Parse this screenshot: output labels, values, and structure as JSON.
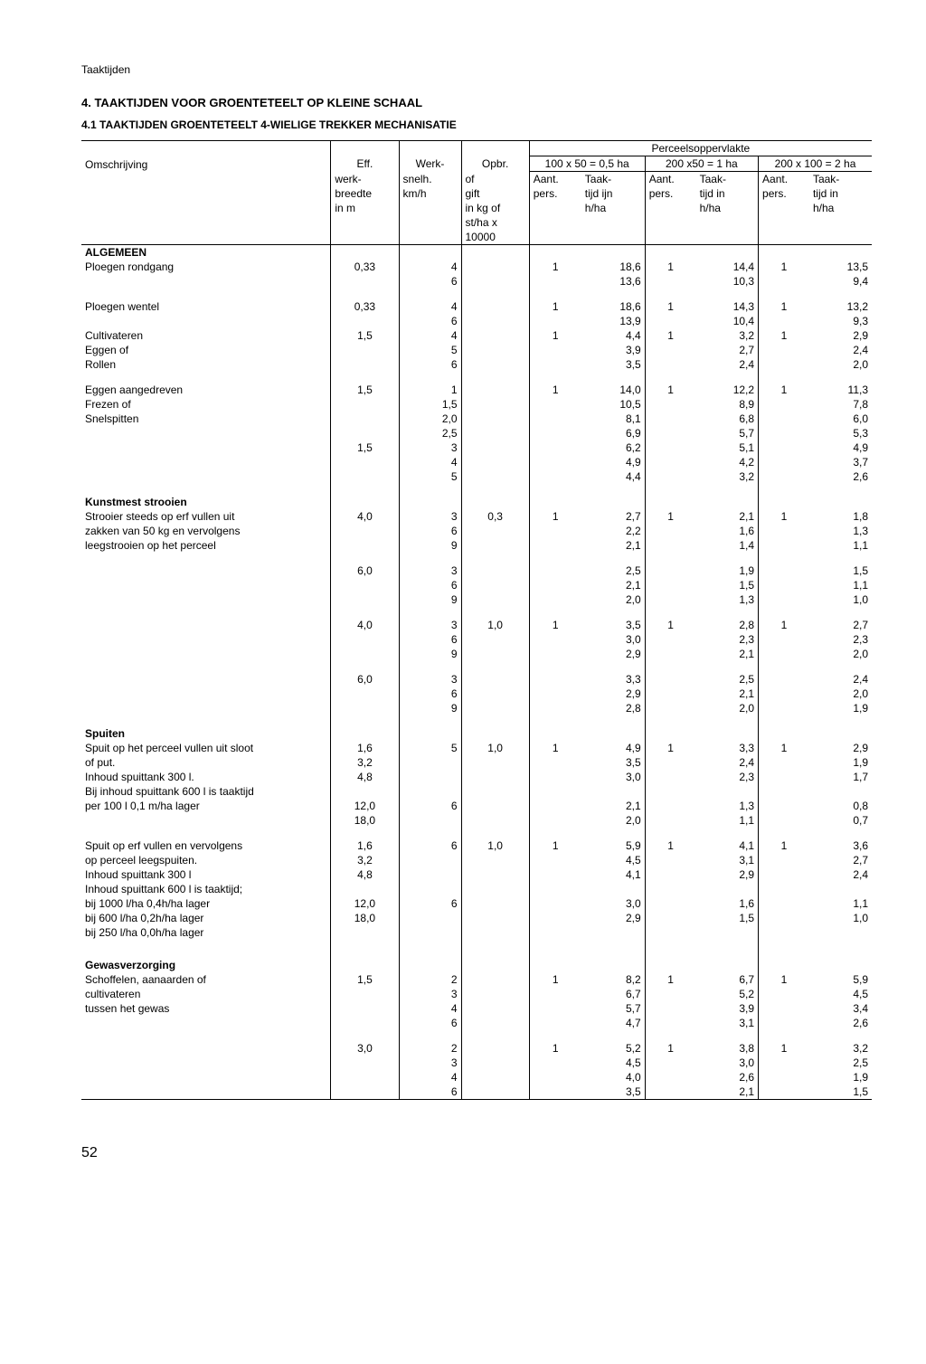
{
  "header": "Taaktijden",
  "section_title": "4. TAAKTIJDEN VOOR GROENTETEELT OP KLEINE SCHAAL",
  "subsection_title": "4.1 TAAKTIJDEN GROENTETEELT 4-WIELIGE TREKKER MECHANISATIE",
  "page_number": "52",
  "th": {
    "omschrijving": "Omschrijving",
    "eff1": "Eff.",
    "eff2": "werk-",
    "eff3": "breedte",
    "eff4": "in m",
    "werk1": "Werk-",
    "werk2": "snelh.",
    "werk3": "km/h",
    "opbr1": "Opbr.",
    "opbr2": "of",
    "opbr3": "gift",
    "opbr4": "in kg of",
    "opbr5": "st/ha x",
    "opbr6": "10000",
    "perceel": "Perceelsoppervlakte",
    "p1": "100 x 50 = 0,5 ha",
    "p2": "200 x50 = 1 ha",
    "p3": "200 x 100 = 2 ha",
    "aant1": "Aant.",
    "aant2": "pers.",
    "taak1": "Taak-",
    "taak2a": "tijd ijn",
    "taak2b": "tijd in",
    "taak3": "h/ha"
  },
  "sections": {
    "algemeen": "ALGEMEEN",
    "kunstmest": "Kunstmest strooien",
    "spuiten": "Spuiten",
    "gewas": "Gewasverzorging"
  },
  "desc": {
    "ploegen_rondgang": "Ploegen rondgang",
    "ploegen_wentel": "Ploegen wentel",
    "cultivateren": "Cultivateren",
    "eggen_of": "Eggen of",
    "rollen": "Rollen",
    "eggen_aangedreven": "Eggen aangedreven",
    "frezen_of": "Frezen of",
    "snelspitten": "Snelspitten",
    "strooier1": "Strooier steeds op erf vullen uit",
    "strooier2": "zakken van 50 kg en vervolgens",
    "strooier3": "leegstrooien op het perceel",
    "spuit1a": "Spuit op het perceel vullen uit sloot",
    "spuit1b": "of put.",
    "spuit1c": "Inhoud spuittank 300 l.",
    "spuit1d": "Bij inhoud spuittank 600 l is taaktijd",
    "spuit1e": "per 100 l 0,1 m/ha lager",
    "spuit2a": "Spuit op erf vullen en vervolgens",
    "spuit2b": "op perceel leegspuiten.",
    "spuit2c": "Inhoud spuittank 300 l",
    "spuit2d": "Inhoud spuittank 600 l is taaktijd;",
    "spuit2e": "bij 1000 l/ha 0,4h/ha lager",
    "spuit2f": "bij  600 l/ha 0,2h/ha lager",
    "spuit2g": "bij  250 l/ha 0,0h/ha lager",
    "gewas1": "Schoffelen, aanaarden of",
    "gewas2": "cultivateren",
    "gewas3": "tussen het gewas"
  },
  "rows": {
    "r1": {
      "eff": "0,33",
      "w": "4",
      "o": "",
      "a1": "1",
      "t1": "18,6",
      "a2": "1",
      "t2": "14,4",
      "a3": "1",
      "t3": "13,5"
    },
    "r2": {
      "eff": "",
      "w": "6",
      "o": "",
      "a1": "",
      "t1": "13,6",
      "a2": "",
      "t2": "10,3",
      "a3": "",
      "t3": "9,4"
    },
    "r3": {
      "eff": "0,33",
      "w": "4",
      "o": "",
      "a1": "1",
      "t1": "18,6",
      "a2": "1",
      "t2": "14,3",
      "a3": "1",
      "t3": "13,2"
    },
    "r4": {
      "eff": "",
      "w": "6",
      "o": "",
      "a1": "",
      "t1": "13,9",
      "a2": "",
      "t2": "10,4",
      "a3": "",
      "t3": "9,3"
    },
    "r5": {
      "eff": "1,5",
      "w": "4",
      "o": "",
      "a1": "1",
      "t1": "4,4",
      "a2": "1",
      "t2": "3,2",
      "a3": "1",
      "t3": "2,9"
    },
    "r6": {
      "eff": "",
      "w": "5",
      "o": "",
      "a1": "",
      "t1": "3,9",
      "a2": "",
      "t2": "2,7",
      "a3": "",
      "t3": "2,4"
    },
    "r7": {
      "eff": "",
      "w": "6",
      "o": "",
      "a1": "",
      "t1": "3,5",
      "a2": "",
      "t2": "2,4",
      "a3": "",
      "t3": "2,0"
    },
    "r8": {
      "eff": "1,5",
      "w": "1",
      "o": "",
      "a1": "1",
      "t1": "14,0",
      "a2": "1",
      "t2": "12,2",
      "a3": "1",
      "t3": "11,3"
    },
    "r9": {
      "eff": "",
      "w": "1,5",
      "o": "",
      "a1": "",
      "t1": "10,5",
      "a2": "",
      "t2": "8,9",
      "a3": "",
      "t3": "7,8"
    },
    "r10": {
      "eff": "",
      "w": "2,0",
      "o": "",
      "a1": "",
      "t1": "8,1",
      "a2": "",
      "t2": "6,8",
      "a3": "",
      "t3": "6,0"
    },
    "r11": {
      "eff": "",
      "w": "2,5",
      "o": "",
      "a1": "",
      "t1": "6,9",
      "a2": "",
      "t2": "5,7",
      "a3": "",
      "t3": "5,3"
    },
    "r12": {
      "eff": "1,5",
      "w": "3",
      "o": "",
      "a1": "",
      "t1": "6,2",
      "a2": "",
      "t2": "5,1",
      "a3": "",
      "t3": "4,9"
    },
    "r13": {
      "eff": "",
      "w": "4",
      "o": "",
      "a1": "",
      "t1": "4,9",
      "a2": "",
      "t2": "4,2",
      "a3": "",
      "t3": "3,7"
    },
    "r14": {
      "eff": "",
      "w": "5",
      "o": "",
      "a1": "",
      "t1": "4,4",
      "a2": "",
      "t2": "3,2",
      "a3": "",
      "t3": "2,6"
    },
    "r15": {
      "eff": "4,0",
      "w": "3",
      "o": "0,3",
      "a1": "1",
      "t1": "2,7",
      "a2": "1",
      "t2": "2,1",
      "a3": "1",
      "t3": "1,8"
    },
    "r16": {
      "eff": "",
      "w": "6",
      "o": "",
      "a1": "",
      "t1": "2,2",
      "a2": "",
      "t2": "1,6",
      "a3": "",
      "t3": "1,3"
    },
    "r17": {
      "eff": "",
      "w": "9",
      "o": "",
      "a1": "",
      "t1": "2,1",
      "a2": "",
      "t2": "1,4",
      "a3": "",
      "t3": "1,1"
    },
    "r18": {
      "eff": "6,0",
      "w": "3",
      "o": "",
      "a1": "",
      "t1": "2,5",
      "a2": "",
      "t2": "1,9",
      "a3": "",
      "t3": "1,5"
    },
    "r19": {
      "eff": "",
      "w": "6",
      "o": "",
      "a1": "",
      "t1": "2,1",
      "a2": "",
      "t2": "1,5",
      "a3": "",
      "t3": "1,1"
    },
    "r20": {
      "eff": "",
      "w": "9",
      "o": "",
      "a1": "",
      "t1": "2,0",
      "a2": "",
      "t2": "1,3",
      "a3": "",
      "t3": "1,0"
    },
    "r21": {
      "eff": "4,0",
      "w": "3",
      "o": "1,0",
      "a1": "1",
      "t1": "3,5",
      "a2": "1",
      "t2": "2,8",
      "a3": "1",
      "t3": "2,7"
    },
    "r22": {
      "eff": "",
      "w": "6",
      "o": "",
      "a1": "",
      "t1": "3,0",
      "a2": "",
      "t2": "2,3",
      "a3": "",
      "t3": "2,3"
    },
    "r23": {
      "eff": "",
      "w": "9",
      "o": "",
      "a1": "",
      "t1": "2,9",
      "a2": "",
      "t2": "2,1",
      "a3": "",
      "t3": "2,0"
    },
    "r24": {
      "eff": "6,0",
      "w": "3",
      "o": "",
      "a1": "",
      "t1": "3,3",
      "a2": "",
      "t2": "2,5",
      "a3": "",
      "t3": "2,4"
    },
    "r25": {
      "eff": "",
      "w": "6",
      "o": "",
      "a1": "",
      "t1": "2,9",
      "a2": "",
      "t2": "2,1",
      "a3": "",
      "t3": "2,0"
    },
    "r26": {
      "eff": "",
      "w": "9",
      "o": "",
      "a1": "",
      "t1": "2,8",
      "a2": "",
      "t2": "2,0",
      "a3": "",
      "t3": "1,9"
    },
    "r27": {
      "eff": "1,6",
      "w": "5",
      "o": "1,0",
      "a1": "1",
      "t1": "4,9",
      "a2": "1",
      "t2": "3,3",
      "a3": "1",
      "t3": "2,9"
    },
    "r28": {
      "eff": "3,2",
      "w": "",
      "o": "",
      "a1": "",
      "t1": "3,5",
      "a2": "",
      "t2": "2,4",
      "a3": "",
      "t3": "1,9"
    },
    "r29": {
      "eff": "4,8",
      "w": "",
      "o": "",
      "a1": "",
      "t1": "3,0",
      "a2": "",
      "t2": "2,3",
      "a3": "",
      "t3": "1,7"
    },
    "r30": {
      "eff": "12,0",
      "w": "6",
      "o": "",
      "a1": "",
      "t1": "2,1",
      "a2": "",
      "t2": "1,3",
      "a3": "",
      "t3": "0,8"
    },
    "r31": {
      "eff": "18,0",
      "w": "",
      "o": "",
      "a1": "",
      "t1": "2,0",
      "a2": "",
      "t2": "1,1",
      "a3": "",
      "t3": "0,7"
    },
    "r32": {
      "eff": "1,6",
      "w": "6",
      "o": "1,0",
      "a1": "1",
      "t1": "5,9",
      "a2": "1",
      "t2": "4,1",
      "a3": "1",
      "t3": "3,6"
    },
    "r33": {
      "eff": "3,2",
      "w": "",
      "o": "",
      "a1": "",
      "t1": "4,5",
      "a2": "",
      "t2": "3,1",
      "a3": "",
      "t3": "2,7"
    },
    "r34": {
      "eff": "4,8",
      "w": "",
      "o": "",
      "a1": "",
      "t1": "4,1",
      "a2": "",
      "t2": "2,9",
      "a3": "",
      "t3": "2,4"
    },
    "r35": {
      "eff": "12,0",
      "w": "6",
      "o": "",
      "a1": "",
      "t1": "3,0",
      "a2": "",
      "t2": "1,6",
      "a3": "",
      "t3": "1,1"
    },
    "r36": {
      "eff": "18,0",
      "w": "",
      "o": "",
      "a1": "",
      "t1": "2,9",
      "a2": "",
      "t2": "1,5",
      "a3": "",
      "t3": "1,0"
    },
    "r37": {
      "eff": "1,5",
      "w": "2",
      "o": "",
      "a1": "1",
      "t1": "8,2",
      "a2": "1",
      "t2": "6,7",
      "a3": "1",
      "t3": "5,9"
    },
    "r38": {
      "eff": "",
      "w": "3",
      "o": "",
      "a1": "",
      "t1": "6,7",
      "a2": "",
      "t2": "5,2",
      "a3": "",
      "t3": "4,5"
    },
    "r39": {
      "eff": "",
      "w": "4",
      "o": "",
      "a1": "",
      "t1": "5,7",
      "a2": "",
      "t2": "3,9",
      "a3": "",
      "t3": "3,4"
    },
    "r40": {
      "eff": "",
      "w": "6",
      "o": "",
      "a1": "",
      "t1": "4,7",
      "a2": "",
      "t2": "3,1",
      "a3": "",
      "t3": "2,6"
    },
    "r41": {
      "eff": "3,0",
      "w": "2",
      "o": "",
      "a1": "1",
      "t1": "5,2",
      "a2": "1",
      "t2": "3,8",
      "a3": "1",
      "t3": "3,2"
    },
    "r42": {
      "eff": "",
      "w": "3",
      "o": "",
      "a1": "",
      "t1": "4,5",
      "a2": "",
      "t2": "3,0",
      "a3": "",
      "t3": "2,5"
    },
    "r43": {
      "eff": "",
      "w": "4",
      "o": "",
      "a1": "",
      "t1": "4,0",
      "a2": "",
      "t2": "2,6",
      "a3": "",
      "t3": "1,9"
    },
    "r44": {
      "eff": "",
      "w": "6",
      "o": "",
      "a1": "",
      "t1": "3,5",
      "a2": "",
      "t2": "2,1",
      "a3": "",
      "t3": "1,5"
    }
  }
}
